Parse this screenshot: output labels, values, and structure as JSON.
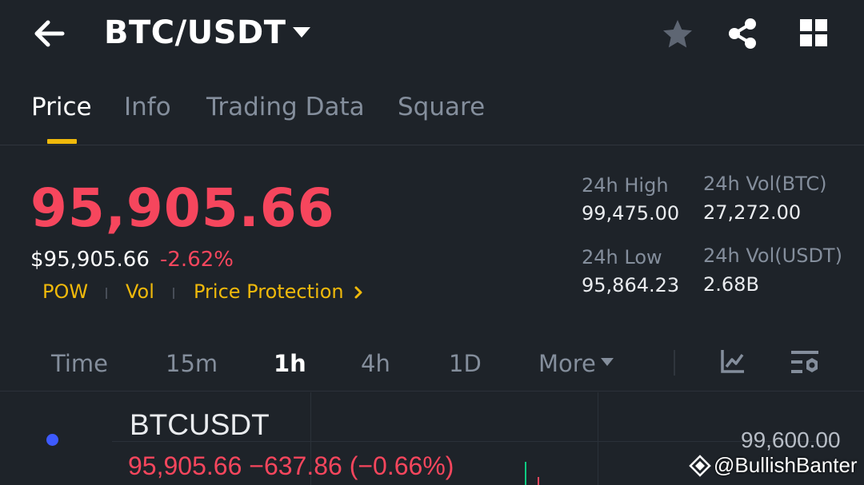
{
  "header": {
    "pair": "BTC/USDT"
  },
  "tabs": [
    {
      "label": "Price",
      "active": true
    },
    {
      "label": "Info",
      "active": false
    },
    {
      "label": "Trading Data",
      "active": false
    },
    {
      "label": "Square",
      "active": false
    }
  ],
  "ticker": {
    "last_price": "95,905.66",
    "usd_price": "$95,905.66",
    "change_pct": "-2.62%",
    "tags": [
      "POW",
      "Vol",
      "Price Protection"
    ],
    "high_label": "24h High",
    "high_value": "99,475.00",
    "low_label": "24h Low",
    "low_value": "95,864.23",
    "vol_btc_label": "24h Vol(BTC)",
    "vol_btc_value": "27,272.00",
    "vol_usdt_label": "24h Vol(USDT)",
    "vol_usdt_value": "2.68B"
  },
  "intervals": {
    "items": [
      "Time",
      "15m",
      "1h",
      "4h",
      "1D",
      "More"
    ],
    "selected": "1h"
  },
  "chart": {
    "symbol": "BTCUSDT",
    "ohlc_line": "95,905.66  −637.86 (−0.66%)",
    "axis_top_value": "99,600.00"
  },
  "watermark": {
    "text": "@BullishBanter"
  },
  "colors": {
    "background": "#1e2329",
    "down_red": "#f6465d",
    "up_green": "#0ecb81",
    "accent_yellow": "#f0b90b",
    "muted_gray": "#848e9c"
  },
  "icons": {
    "back": "arrow-left-icon",
    "dropdown": "caret-down-icon",
    "favorite": "star-icon",
    "share": "share-icon",
    "layout": "grid-icon",
    "indicators": "chart-indicator-icon",
    "settings": "chart-settings-icon"
  }
}
